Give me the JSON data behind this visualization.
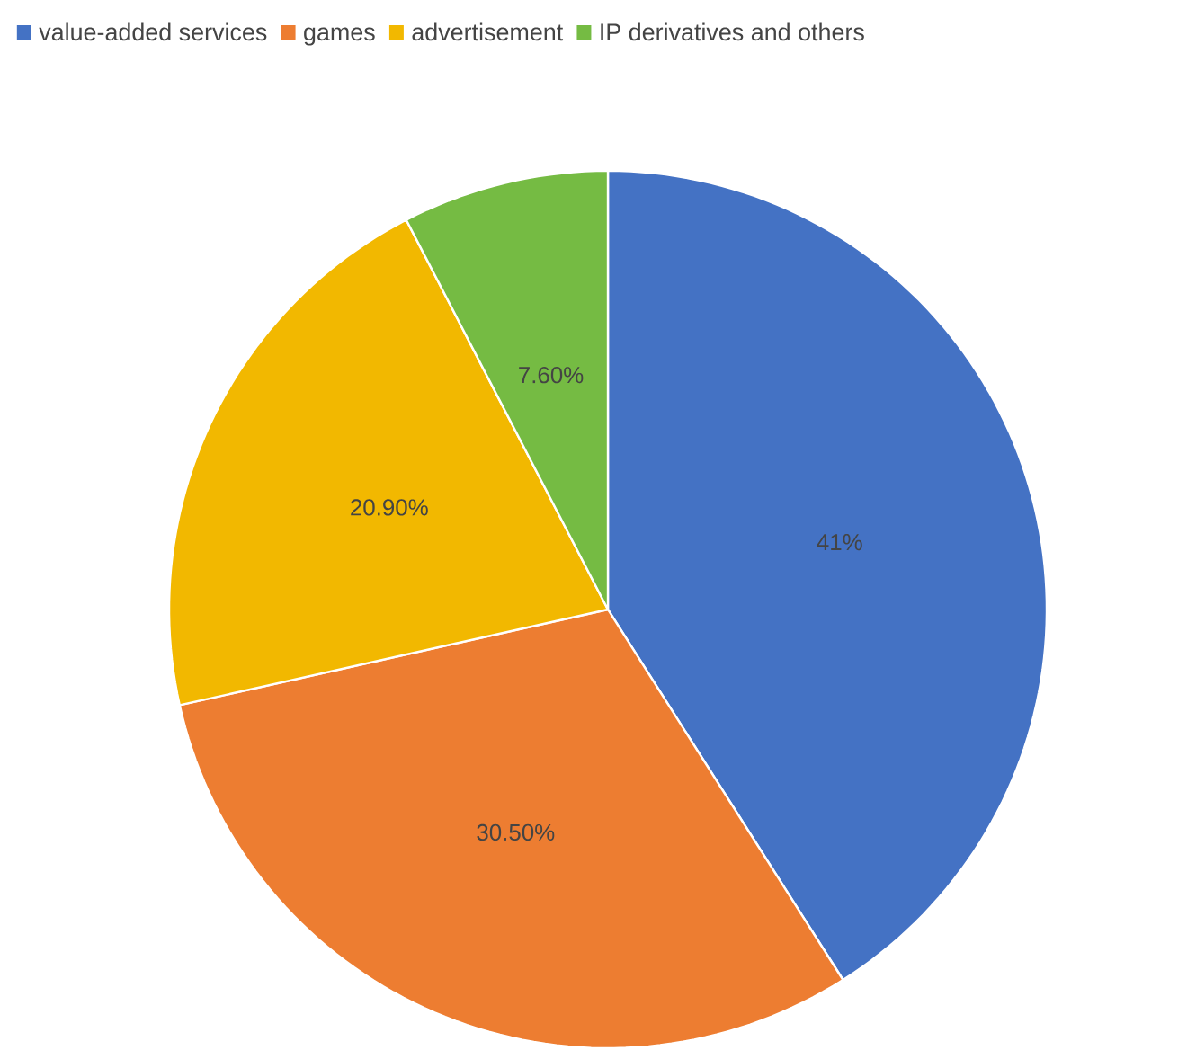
{
  "chart_data": {
    "type": "pie",
    "legend": "top left",
    "categories": [
      "value-added services",
      "games",
      "advertisement",
      "IP derivatives and others"
    ],
    "values": [
      41,
      30.5,
      20.9,
      7.6
    ],
    "value_labels": [
      "41%",
      "30.50%",
      "20.90%",
      "7.60%"
    ],
    "colors": [
      "#4472c4",
      "#ed7d31",
      "#f2b800",
      "#75bb43"
    ]
  }
}
